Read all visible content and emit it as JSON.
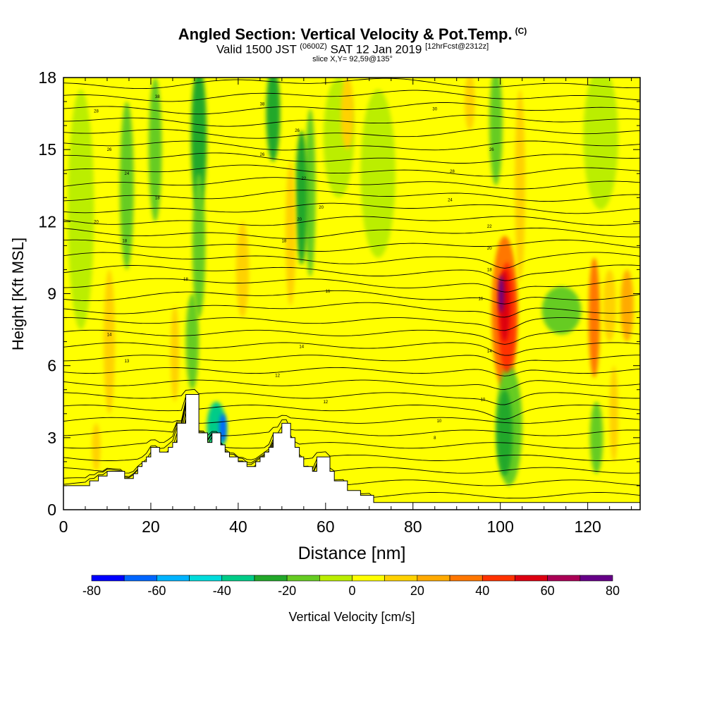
{
  "header": {
    "title": "Angled Section: Vertical Velocity & Pot.Temp.",
    "title_mark": "(C)",
    "subtitle_valid": "Valid 1500 JST",
    "subtitle_z": "(0600Z)",
    "subtitle_date": "SAT 12 Jan 2019",
    "subtitle_fcst": "[12hrFcst@2312z]",
    "slice_label": "slice X,Y= 92,59@135°"
  },
  "chart_data": {
    "type": "heatmap",
    "xlabel": "Distance [nm]",
    "ylabel": "Height [Kft MSL]",
    "xlim": [
      0,
      132
    ],
    "ylim": [
      0,
      18
    ],
    "x_ticks": [
      "0",
      "20",
      "40",
      "60",
      "80",
      "100",
      "120"
    ],
    "x_tick_values": [
      0,
      20,
      40,
      60,
      80,
      100,
      120
    ],
    "y_ticks": [
      "0",
      "3",
      "6",
      "9",
      "12",
      "15",
      "18"
    ],
    "y_tick_values": [
      0,
      3,
      6,
      9,
      12,
      15,
      18
    ],
    "background_color": "#ffff00",
    "terrain_color": "#ffffff",
    "terrain_profile": [
      [
        0,
        1.0
      ],
      [
        6,
        1.0
      ],
      [
        6,
        1.2
      ],
      [
        8,
        1.2
      ],
      [
        8,
        1.4
      ],
      [
        10,
        1.4
      ],
      [
        10,
        1.6
      ],
      [
        14,
        1.6
      ],
      [
        14,
        1.3
      ],
      [
        16,
        1.3
      ],
      [
        16,
        1.5
      ],
      [
        17,
        1.5
      ],
      [
        17,
        1.8
      ],
      [
        18,
        1.8
      ],
      [
        18,
        2.0
      ],
      [
        19,
        2.0
      ],
      [
        19,
        2.2
      ],
      [
        20,
        2.2
      ],
      [
        20,
        2.6
      ],
      [
        22,
        2.6
      ],
      [
        22,
        2.4
      ],
      [
        24,
        2.4
      ],
      [
        24,
        2.6
      ],
      [
        25,
        2.6
      ],
      [
        25,
        2.8
      ],
      [
        26,
        2.8
      ],
      [
        26,
        3.6
      ],
      [
        28,
        3.6
      ],
      [
        28,
        4.8
      ],
      [
        31,
        4.8
      ],
      [
        31,
        3.2
      ],
      [
        33,
        3.2
      ],
      [
        33,
        2.8
      ],
      [
        34,
        2.8
      ],
      [
        34,
        3.2
      ],
      [
        36,
        3.2
      ],
      [
        36,
        2.7
      ],
      [
        37,
        2.7
      ],
      [
        37,
        2.4
      ],
      [
        38,
        2.4
      ],
      [
        38,
        2.2
      ],
      [
        40,
        2.2
      ],
      [
        40,
        2.0
      ],
      [
        42,
        2.0
      ],
      [
        42,
        1.8
      ],
      [
        44,
        1.8
      ],
      [
        44,
        2.0
      ],
      [
        45,
        2.0
      ],
      [
        45,
        2.2
      ],
      [
        46,
        2.2
      ],
      [
        46,
        2.4
      ],
      [
        47,
        2.4
      ],
      [
        47,
        2.6
      ],
      [
        48,
        2.6
      ],
      [
        48,
        3.2
      ],
      [
        50,
        3.2
      ],
      [
        50,
        3.6
      ],
      [
        52,
        3.6
      ],
      [
        52,
        3.0
      ],
      [
        53,
        3.0
      ],
      [
        53,
        2.6
      ],
      [
        54,
        2.6
      ],
      [
        54,
        2.2
      ],
      [
        55,
        2.2
      ],
      [
        55,
        1.8
      ],
      [
        57,
        1.8
      ],
      [
        57,
        1.6
      ],
      [
        58,
        1.6
      ],
      [
        58,
        2.2
      ],
      [
        61,
        2.2
      ],
      [
        61,
        1.6
      ],
      [
        62,
        1.6
      ],
      [
        62,
        1.2
      ],
      [
        65,
        1.2
      ],
      [
        65,
        0.8
      ],
      [
        68,
        0.8
      ],
      [
        68,
        0.6
      ],
      [
        71,
        0.6
      ],
      [
        71,
        0.3
      ],
      [
        132,
        0.3
      ]
    ],
    "velocity_features": [
      {
        "x": 4,
        "y": 12.5,
        "rx": 3.0,
        "ry": 5.0,
        "value": -10
      },
      {
        "x": 14.5,
        "y": 13.5,
        "rx": 1.6,
        "ry": 3.5,
        "value": -15
      },
      {
        "x": 21,
        "y": 15.0,
        "rx": 1.5,
        "ry": 3.0,
        "value": -15
      },
      {
        "x": 31,
        "y": 15.5,
        "rx": 1.8,
        "ry": 3.0,
        "value": -25
      },
      {
        "x": 31,
        "y": 11.0,
        "rx": 1.5,
        "ry": 3.0,
        "value": -15
      },
      {
        "x": 29.5,
        "y": 7.0,
        "rx": 1.5,
        "ry": 2.0,
        "value": -20
      },
      {
        "x": 35,
        "y": 3.4,
        "rx": 2.2,
        "ry": 1.1,
        "value": -40
      },
      {
        "x": 36.5,
        "y": 3.4,
        "rx": 0.8,
        "ry": 0.6,
        "value": -70
      },
      {
        "x": 48,
        "y": 16.5,
        "rx": 1.6,
        "ry": 2.0,
        "value": -25
      },
      {
        "x": 54.5,
        "y": 13.0,
        "rx": 1.4,
        "ry": 2.8,
        "value": -25
      },
      {
        "x": 56.5,
        "y": 13.2,
        "rx": 1.2,
        "ry": 3.5,
        "value": -20
      },
      {
        "x": 63,
        "y": 15.5,
        "rx": 3.5,
        "ry": 2.5,
        "value": -10
      },
      {
        "x": 72,
        "y": 14.0,
        "rx": 4.0,
        "ry": 3.5,
        "value": -5
      },
      {
        "x": 99,
        "y": 16.0,
        "rx": 1.5,
        "ry": 2.5,
        "value": -15
      },
      {
        "x": 101,
        "y": 3.2,
        "rx": 1.8,
        "ry": 1.8,
        "value": -30
      },
      {
        "x": 102,
        "y": 3.5,
        "rx": 3.0,
        "ry": 2.5,
        "value": -15
      },
      {
        "x": 114,
        "y": 8.3,
        "rx": 4.5,
        "ry": 1.0,
        "value": -20
      },
      {
        "x": 122,
        "y": 3.0,
        "rx": 1.5,
        "ry": 1.5,
        "value": -15
      },
      {
        "x": 123,
        "y": 15.5,
        "rx": 4.0,
        "ry": 3.0,
        "value": -5
      },
      {
        "x": 10.5,
        "y": 7.0,
        "rx": 1.3,
        "ry": 3.0,
        "value": 15
      },
      {
        "x": 7.5,
        "y": 2.6,
        "rx": 1.0,
        "ry": 1.0,
        "value": 15
      },
      {
        "x": 25.5,
        "y": 6.5,
        "rx": 1.0,
        "ry": 2.0,
        "value": 10
      },
      {
        "x": 41,
        "y": 10.0,
        "rx": 1.5,
        "ry": 2.0,
        "value": 10
      },
      {
        "x": 52,
        "y": 11.5,
        "rx": 1.2,
        "ry": 3.0,
        "value": 10
      },
      {
        "x": 65,
        "y": 16.5,
        "rx": 1.5,
        "ry": 1.5,
        "value": 15
      },
      {
        "x": 93,
        "y": 17.0,
        "rx": 1.2,
        "ry": 1.2,
        "value": 10
      },
      {
        "x": 104.5,
        "y": 13.5,
        "rx": 1.2,
        "ry": 4.0,
        "value": 15
      },
      {
        "x": 101,
        "y": 8.2,
        "rx": 3.0,
        "ry": 3.2,
        "value": 30
      },
      {
        "x": 101.5,
        "y": 8.0,
        "rx": 2.0,
        "ry": 2.3,
        "value": 45
      },
      {
        "x": 101,
        "y": 8.5,
        "rx": 1.2,
        "ry": 1.5,
        "value": 55
      },
      {
        "x": 100.2,
        "y": 9.0,
        "rx": 0.6,
        "ry": 0.8,
        "value": 75
      },
      {
        "x": 121.5,
        "y": 8.0,
        "rx": 1.3,
        "ry": 2.5,
        "value": 35
      },
      {
        "x": 125,
        "y": 8.5,
        "rx": 1.5,
        "ry": 1.5,
        "value": 15
      },
      {
        "x": 129,
        "y": 8.5,
        "rx": 1.5,
        "ry": 1.5,
        "value": 20
      },
      {
        "x": 126,
        "y": 4.0,
        "rx": 1.0,
        "ry": 2.0,
        "value": 15
      }
    ],
    "theta_level_count": 34,
    "theta_contour_labels": [
      {
        "text": "38",
        "x": 21.5,
        "y": 17.2
      },
      {
        "text": "38",
        "x": 45.5,
        "y": 16.9
      },
      {
        "text": "30",
        "x": 85,
        "y": 16.7
      },
      {
        "text": "28",
        "x": 7.5,
        "y": 16.6
      },
      {
        "text": "26",
        "x": 53.5,
        "y": 15.8
      },
      {
        "text": "26",
        "x": 10.5,
        "y": 15.0
      },
      {
        "text": "26",
        "x": 98,
        "y": 15.0
      },
      {
        "text": "26",
        "x": 45.5,
        "y": 14.8
      },
      {
        "text": "24",
        "x": 14.5,
        "y": 14.0
      },
      {
        "text": "28",
        "x": 89,
        "y": 14.1
      },
      {
        "text": "22",
        "x": 55,
        "y": 13.8
      },
      {
        "text": "24",
        "x": 88.5,
        "y": 12.9
      },
      {
        "text": "18",
        "x": 21.5,
        "y": 13.0
      },
      {
        "text": "20",
        "x": 59,
        "y": 12.6
      },
      {
        "text": "20",
        "x": 54,
        "y": 12.1
      },
      {
        "text": "20",
        "x": 7.5,
        "y": 12.0
      },
      {
        "text": "22",
        "x": 97.5,
        "y": 11.8
      },
      {
        "text": "18",
        "x": 50.5,
        "y": 11.2
      },
      {
        "text": "18",
        "x": 14,
        "y": 11.2
      },
      {
        "text": "20",
        "x": 97.5,
        "y": 10.9
      },
      {
        "text": "18",
        "x": 97.5,
        "y": 10.0
      },
      {
        "text": "18",
        "x": 28,
        "y": 9.6
      },
      {
        "text": "16",
        "x": 60.5,
        "y": 9.1
      },
      {
        "text": "16",
        "x": 95.5,
        "y": 8.8
      },
      {
        "text": "14",
        "x": 10.5,
        "y": 7.3
      },
      {
        "text": "14",
        "x": 54.5,
        "y": 6.8
      },
      {
        "text": "14",
        "x": 97.5,
        "y": 6.6
      },
      {
        "text": "13",
        "x": 14.5,
        "y": 6.2
      },
      {
        "text": "12",
        "x": 49,
        "y": 5.6
      },
      {
        "text": "12",
        "x": 60,
        "y": 4.5
      },
      {
        "text": "10",
        "x": 96,
        "y": 4.6
      },
      {
        "text": "10",
        "x": 86,
        "y": 3.7
      },
      {
        "text": "8",
        "x": 85,
        "y": 3.0
      }
    ]
  },
  "colorbar": {
    "label": "Vertical Velocity [cm/s]",
    "tick_labels": [
      "-80",
      "-60",
      "-40",
      "-20",
      "0",
      "20",
      "40",
      "60",
      "80"
    ],
    "bins": [
      {
        "min": -80,
        "max": -70,
        "color": "#0000ff"
      },
      {
        "min": -70,
        "max": -60,
        "color": "#0066ff"
      },
      {
        "min": -60,
        "max": -50,
        "color": "#00b4ff"
      },
      {
        "min": -50,
        "max": -40,
        "color": "#00dcdc"
      },
      {
        "min": -40,
        "max": -30,
        "color": "#00cc88"
      },
      {
        "min": -30,
        "max": -20,
        "color": "#22a82a"
      },
      {
        "min": -20,
        "max": -10,
        "color": "#66cc22"
      },
      {
        "min": -10,
        "max": 0,
        "color": "#bbee00"
      },
      {
        "min": 0,
        "max": 10,
        "color": "#ffff00"
      },
      {
        "min": 10,
        "max": 20,
        "color": "#ffd200"
      },
      {
        "min": 20,
        "max": 30,
        "color": "#ffaa00"
      },
      {
        "min": 30,
        "max": 40,
        "color": "#ff7700"
      },
      {
        "min": 40,
        "max": 50,
        "color": "#ff3300"
      },
      {
        "min": 50,
        "max": 60,
        "color": "#dd0011"
      },
      {
        "min": 60,
        "max": 70,
        "color": "#aa0055"
      },
      {
        "min": 70,
        "max": 80,
        "color": "#660088"
      }
    ]
  }
}
